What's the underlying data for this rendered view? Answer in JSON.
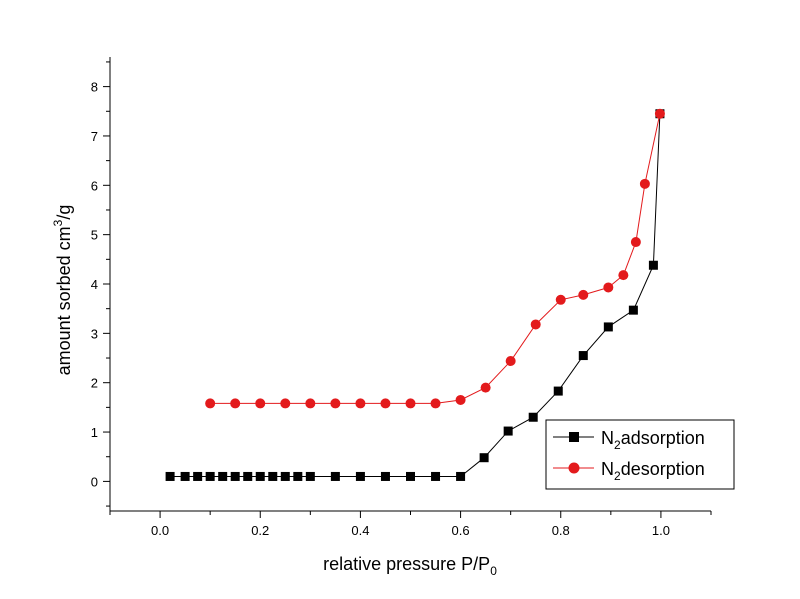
{
  "chart_data": {
    "type": "line",
    "xlabel": {
      "main": "relative pressure P/P",
      "sub": "0"
    },
    "ylabel": {
      "main": "amount sorbed cm",
      "sup": "3",
      "tail": "/g"
    },
    "xlim": [
      -0.1,
      1.1
    ],
    "ylim": [
      -0.6,
      8.6
    ],
    "xticks": [
      0.0,
      0.2,
      0.4,
      0.6,
      0.8,
      1.0
    ],
    "xtick_labels": [
      "0.0",
      "0.2",
      "0.4",
      "0.6",
      "0.8",
      "1.0"
    ],
    "yticks": [
      0,
      1,
      2,
      3,
      4,
      5,
      6,
      7,
      8
    ],
    "ytick_labels": [
      "0",
      "1",
      "2",
      "3",
      "4",
      "5",
      "6",
      "7",
      "8"
    ],
    "grid": false,
    "legend_position": "bottom-right",
    "series": [
      {
        "name": {
          "main": "N",
          "sub": "2",
          "tail": "adsorption"
        },
        "color": "#000000",
        "marker": "square",
        "x": [
          0.02,
          0.05,
          0.075,
          0.1,
          0.125,
          0.15,
          0.175,
          0.2,
          0.225,
          0.25,
          0.275,
          0.3,
          0.35,
          0.4,
          0.45,
          0.5,
          0.55,
          0.6,
          0.647,
          0.695,
          0.745,
          0.795,
          0.845,
          0.895,
          0.945,
          0.985,
          0.998
        ],
        "y": [
          0.1,
          0.1,
          0.1,
          0.1,
          0.1,
          0.1,
          0.1,
          0.1,
          0.1,
          0.1,
          0.1,
          0.1,
          0.1,
          0.1,
          0.1,
          0.1,
          0.1,
          0.1,
          0.48,
          1.02,
          1.3,
          1.83,
          2.55,
          3.13,
          3.47,
          4.38,
          7.45
        ]
      },
      {
        "name": {
          "main": "N",
          "sub": "2",
          "tail": "desorption"
        },
        "color": "#e31a1c",
        "marker": "circle",
        "x": [
          0.998,
          0.968,
          0.95,
          0.925,
          0.895,
          0.845,
          0.8,
          0.75,
          0.7,
          0.65,
          0.6,
          0.55,
          0.5,
          0.45,
          0.4,
          0.35,
          0.3,
          0.25,
          0.2,
          0.15,
          0.1
        ],
        "y": [
          7.45,
          6.03,
          4.85,
          4.18,
          3.93,
          3.78,
          3.68,
          3.18,
          2.44,
          1.9,
          1.65,
          1.58,
          1.58,
          1.58,
          1.58,
          1.58,
          1.58,
          1.58,
          1.58,
          1.58,
          1.58
        ]
      }
    ]
  }
}
